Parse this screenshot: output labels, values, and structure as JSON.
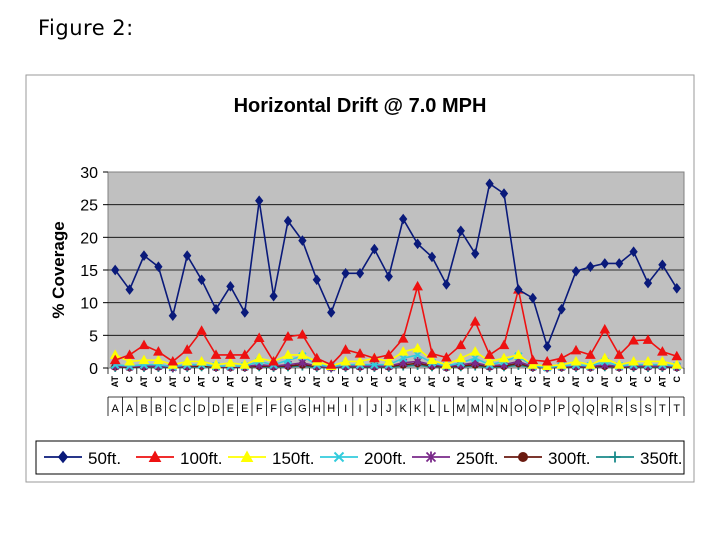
{
  "figure_caption": "Figure 2:",
  "chart_data": {
    "type": "line",
    "title": "Horizontal Drift @ 7.0 MPH",
    "xlabel": "",
    "ylabel": "% Coverage",
    "ylim": [
      0,
      30
    ],
    "yticks": [
      0,
      5,
      10,
      15,
      20,
      25,
      30
    ],
    "grid": true,
    "legend_position": "bottom",
    "categories": [
      "AT",
      "C",
      "AT",
      "C",
      "AT",
      "C",
      "AT",
      "C",
      "AT",
      "C",
      "AT",
      "C",
      "AT",
      "C",
      "AT",
      "C",
      "AT",
      "C",
      "AT",
      "C",
      "AT",
      "C",
      "AT",
      "C",
      "AT",
      "C",
      "AT",
      "C",
      "AT",
      "C",
      "AT",
      "C",
      "AT",
      "C",
      "AT",
      "C",
      "AT",
      "C",
      "AT",
      "C"
    ],
    "groups": [
      "A",
      "A",
      "B",
      "B",
      "C",
      "C",
      "D",
      "D",
      "E",
      "E",
      "F",
      "F",
      "G",
      "G",
      "H",
      "H",
      "I",
      "I",
      "J",
      "J",
      "K",
      "K",
      "L",
      "L",
      "M",
      "M",
      "N",
      "N",
      "O",
      "O",
      "P",
      "P",
      "Q",
      "Q",
      "R",
      "R",
      "S",
      "S",
      "T",
      "T"
    ],
    "series": [
      {
        "name": "50ft.",
        "color": "#0a1a7a",
        "marker": "diamond",
        "values": [
          15,
          12,
          17.2,
          15.5,
          8,
          17.2,
          13.5,
          9,
          12.5,
          8.5,
          25.6,
          11,
          22.5,
          19.5,
          13.5,
          8.5,
          14.5,
          14.5,
          18.2,
          14,
          22.8,
          19,
          17,
          12.8,
          21,
          17.5,
          28.2,
          26.7,
          12,
          10.7,
          3.3,
          9,
          14.8,
          15.5,
          16,
          16,
          17.8,
          13,
          15.8,
          12.2
        ]
      },
      {
        "name": "100ft.",
        "color": "#ee1111",
        "marker": "triangle",
        "values": [
          1.2,
          2,
          3.5,
          2.5,
          1,
          2.8,
          5.7,
          2,
          2,
          2,
          4.6,
          1,
          4.8,
          5.1,
          1.5,
          0.5,
          2.8,
          2.2,
          1.5,
          2,
          4.5,
          12.5,
          2.2,
          1.6,
          3.5,
          7.1,
          2,
          3.5,
          12,
          1.2,
          1,
          1.5,
          2.7,
          2,
          5.9,
          2,
          4.2,
          4.3,
          2.5,
          1.8
        ]
      },
      {
        "name": "150ft.",
        "color": "#ffff00",
        "marker": "triangle",
        "values": [
          2,
          1,
          1.2,
          1.2,
          0.5,
          1,
          1,
          0.5,
          0.8,
          0.5,
          1.5,
          1,
          2,
          2,
          1,
          0.3,
          1,
          1,
          1.5,
          1,
          2.5,
          3,
          1.2,
          0.5,
          1.5,
          2.5,
          1,
          1.5,
          2,
          0.5,
          0.3,
          0.5,
          1,
          0.5,
          1.5,
          0.5,
          1,
          1,
          1,
          0.5
        ]
      },
      {
        "name": "200ft.",
        "color": "#33ccdd",
        "marker": "x",
        "values": [
          0.5,
          0.3,
          0.5,
          0.5,
          0.2,
          0.5,
          0.5,
          0.3,
          0.3,
          0.3,
          1,
          0.5,
          1.2,
          1.8,
          0.5,
          0.2,
          0.5,
          0.5,
          0.5,
          0.5,
          1.5,
          2,
          0.8,
          0.3,
          0.8,
          1.5,
          0.5,
          1,
          1.8,
          0.3,
          0.1,
          0.3,
          0.5,
          0.3,
          1,
          0.3,
          0.5,
          0.5,
          0.5,
          0.3
        ]
      },
      {
        "name": "250ft.",
        "color": "#7a2a8a",
        "marker": "star",
        "values": [
          0.3,
          0.2,
          0.3,
          0.3,
          0.1,
          0.3,
          0.5,
          0.2,
          0.2,
          0.2,
          0.5,
          0.3,
          0.5,
          0.8,
          0.3,
          0.1,
          0.3,
          0.3,
          0.3,
          0.3,
          0.8,
          1,
          0.5,
          0.2,
          0.5,
          0.8,
          0.3,
          0.5,
          1,
          0.2,
          0.1,
          0.2,
          0.3,
          0.2,
          0.5,
          0.2,
          0.3,
          0.3,
          0.3,
          0.2
        ]
      },
      {
        "name": "300ft.",
        "color": "#6a1a10",
        "marker": "circle",
        "values": [
          0.2,
          0.1,
          0.2,
          0.2,
          0.1,
          0.2,
          0.3,
          0.1,
          0.1,
          0.1,
          0.3,
          0.2,
          0.3,
          0.5,
          0.2,
          0.1,
          0.2,
          0.2,
          0.2,
          0.2,
          0.5,
          0.7,
          0.3,
          0.1,
          0.3,
          0.5,
          0.2,
          0.3,
          0.7,
          0.1,
          0.05,
          0.1,
          0.2,
          0.1,
          0.3,
          0.1,
          0.2,
          0.2,
          0.2,
          0.1
        ]
      },
      {
        "name": "350ft.",
        "color": "#1a8a8a",
        "marker": "plus",
        "values": [
          0.1,
          0.1,
          0.1,
          0.1,
          0,
          0.1,
          0.2,
          0.1,
          0.1,
          0.1,
          0.2,
          0.1,
          0.2,
          0.3,
          0.1,
          0,
          0.1,
          0.1,
          0.1,
          0.1,
          0.3,
          0.4,
          0.2,
          0.1,
          0.2,
          0.3,
          0.1,
          0.2,
          0.4,
          0.1,
          0,
          0.1,
          0.1,
          0.1,
          0.2,
          0.1,
          0.1,
          0.1,
          0.1,
          0.1
        ]
      }
    ]
  }
}
